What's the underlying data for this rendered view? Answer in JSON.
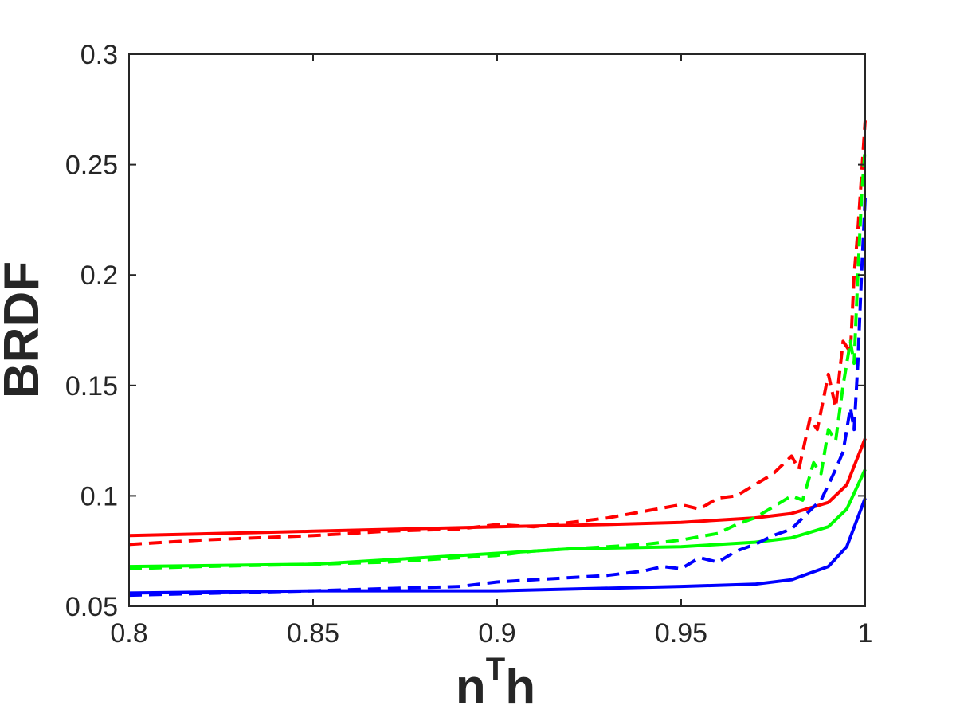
{
  "chart_data": {
    "type": "line",
    "title": "",
    "xlabel": {
      "base": "n",
      "sup": "T",
      "tail": "h"
    },
    "ylabel": "BRDF",
    "xlim": [
      0.8,
      1.0
    ],
    "ylim": [
      0.05,
      0.3
    ],
    "xticks": [
      0.8,
      0.85,
      0.9,
      0.95,
      1.0
    ],
    "xtick_labels": [
      "0.8",
      "0.85",
      "0.9",
      "0.95",
      "1"
    ],
    "yticks": [
      0.05,
      0.1,
      0.15,
      0.2,
      0.25,
      0.3
    ],
    "ytick_labels": [
      "0.05",
      "0.1",
      "0.15",
      "0.2",
      "0.25",
      "0.3"
    ],
    "grid": false,
    "legend": "none",
    "series": [
      {
        "color": "#ff0000",
        "style": "solid",
        "x": [
          0.8,
          0.85,
          0.9,
          0.93,
          0.95,
          0.97,
          0.98,
          0.99,
          0.995,
          1.0
        ],
        "y": [
          0.082,
          0.084,
          0.086,
          0.087,
          0.088,
          0.09,
          0.092,
          0.097,
          0.105,
          0.126
        ]
      },
      {
        "color": "#00ff00",
        "style": "solid",
        "x": [
          0.8,
          0.85,
          0.88,
          0.9,
          0.92,
          0.95,
          0.97,
          0.98,
          0.99,
          0.995,
          1.0
        ],
        "y": [
          0.068,
          0.069,
          0.072,
          0.074,
          0.076,
          0.077,
          0.079,
          0.081,
          0.086,
          0.094,
          0.112
        ]
      },
      {
        "color": "#0000ff",
        "style": "solid",
        "x": [
          0.8,
          0.85,
          0.9,
          0.95,
          0.97,
          0.98,
          0.99,
          0.995,
          1.0
        ],
        "y": [
          0.056,
          0.057,
          0.057,
          0.059,
          0.06,
          0.062,
          0.068,
          0.077,
          0.099
        ]
      },
      {
        "color": "#ff0000",
        "style": "dashed",
        "x": [
          0.8,
          0.82,
          0.85,
          0.87,
          0.89,
          0.9,
          0.91,
          0.92,
          0.93,
          0.94,
          0.95,
          0.955,
          0.96,
          0.965,
          0.97,
          0.975,
          0.98,
          0.982,
          0.985,
          0.987,
          0.99,
          0.992,
          0.994,
          0.996,
          0.997,
          0.998,
          0.999,
          1.0
        ],
        "y": [
          0.078,
          0.08,
          0.082,
          0.084,
          0.085,
          0.087,
          0.086,
          0.088,
          0.09,
          0.093,
          0.096,
          0.094,
          0.099,
          0.1,
          0.105,
          0.11,
          0.118,
          0.112,
          0.135,
          0.13,
          0.155,
          0.14,
          0.17,
          0.165,
          0.2,
          0.22,
          0.245,
          0.27
        ]
      },
      {
        "color": "#00ff00",
        "style": "dashed",
        "x": [
          0.8,
          0.82,
          0.85,
          0.87,
          0.89,
          0.9,
          0.91,
          0.93,
          0.94,
          0.95,
          0.96,
          0.965,
          0.97,
          0.975,
          0.98,
          0.983,
          0.986,
          0.988,
          0.99,
          0.992,
          0.994,
          0.996,
          0.997,
          0.998,
          0.999,
          1.0
        ],
        "y": [
          0.067,
          0.068,
          0.069,
          0.07,
          0.072,
          0.073,
          0.075,
          0.077,
          0.078,
          0.08,
          0.083,
          0.087,
          0.09,
          0.095,
          0.1,
          0.098,
          0.115,
          0.11,
          0.13,
          0.125,
          0.15,
          0.17,
          0.16,
          0.2,
          0.235,
          0.258
        ]
      },
      {
        "color": "#0000ff",
        "style": "dashed",
        "x": [
          0.8,
          0.85,
          0.87,
          0.89,
          0.9,
          0.91,
          0.92,
          0.93,
          0.94,
          0.945,
          0.95,
          0.955,
          0.96,
          0.965,
          0.97,
          0.975,
          0.98,
          0.983,
          0.986,
          0.988,
          0.99,
          0.992,
          0.994,
          0.996,
          0.997,
          0.998,
          0.999,
          1.0
        ],
        "y": [
          0.055,
          0.057,
          0.058,
          0.059,
          0.061,
          0.062,
          0.063,
          0.064,
          0.066,
          0.068,
          0.067,
          0.072,
          0.07,
          0.075,
          0.078,
          0.082,
          0.085,
          0.09,
          0.095,
          0.098,
          0.105,
          0.112,
          0.12,
          0.14,
          0.13,
          0.16,
          0.2,
          0.235
        ]
      }
    ]
  }
}
